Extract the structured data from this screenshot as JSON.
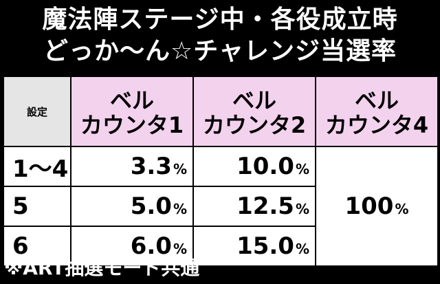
{
  "title": {
    "line1": "魔法陣ステージ中・各役成立時",
    "line2": "どっか〜ん☆チャレンジ当選率"
  },
  "table": {
    "corner_label": "設定",
    "columns": [
      {
        "line1": "ベル",
        "line2": "カウンタ1"
      },
      {
        "line1": "ベル",
        "line2": "カウンタ2"
      },
      {
        "line1": "ベル",
        "line2": "カウンタ4"
      }
    ],
    "rows": [
      {
        "setting": "1〜4",
        "c1": "3.3",
        "c2": "10.0"
      },
      {
        "setting": "5",
        "c1": "5.0",
        "c2": "12.5"
      },
      {
        "setting": "6",
        "c1": "6.0",
        "c2": "15.0"
      }
    ],
    "merged_value": "100",
    "unit": "%"
  },
  "footer": {
    "note": "※ART抽選モード共通"
  }
}
